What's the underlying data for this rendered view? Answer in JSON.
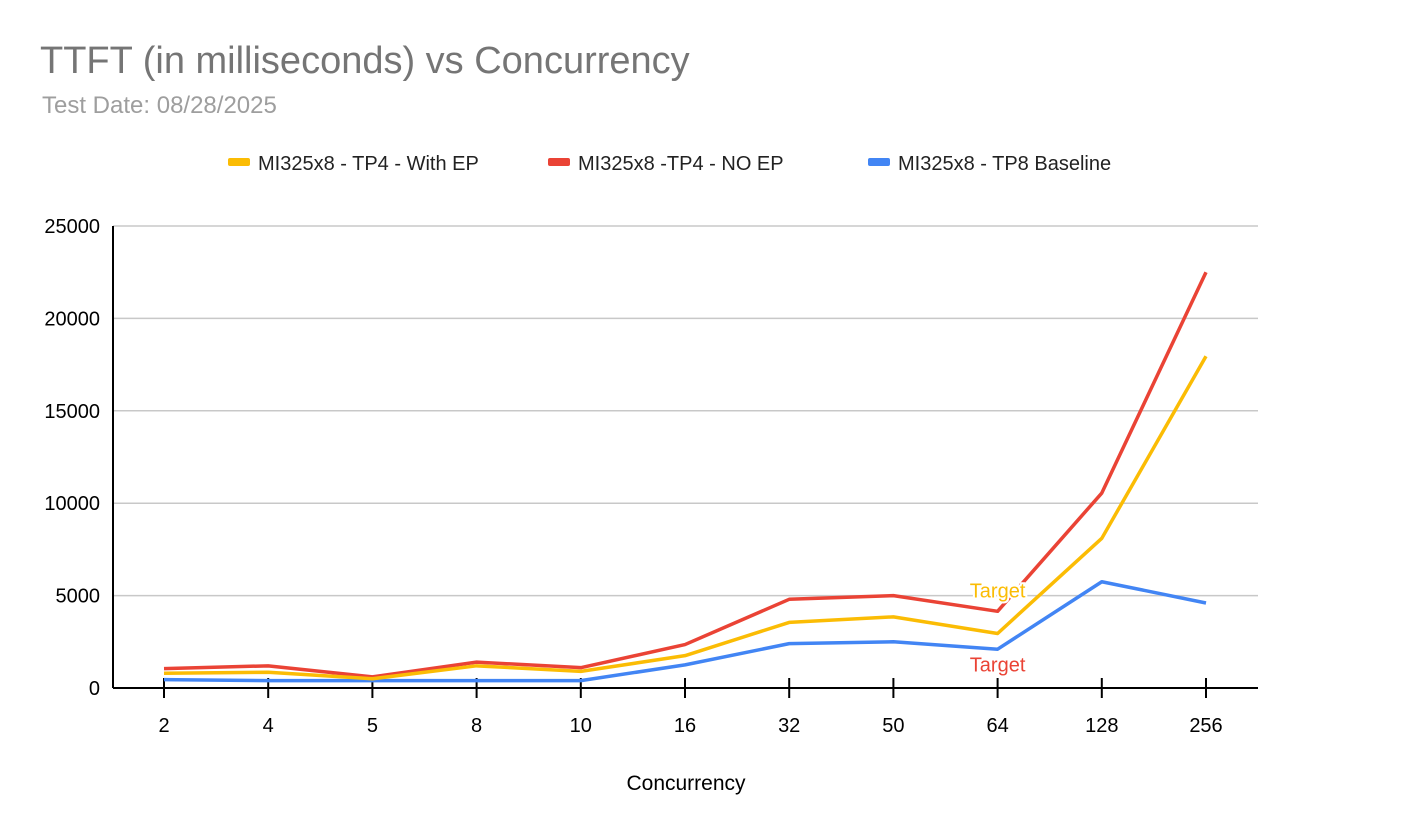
{
  "chart_data": {
    "type": "line",
    "title": "TTFT (in milliseconds) vs Concurrency",
    "subtitle": "Test Date: 08/28/2025",
    "xlabel": "Concurrency",
    "ylabel": "",
    "categories": [
      "2",
      "4",
      "5",
      "8",
      "10",
      "16",
      "32",
      "50",
      "64",
      "128",
      "256"
    ],
    "ylim": [
      0,
      25000
    ],
    "yticks": [
      "0",
      "5000",
      "10000",
      "15000",
      "20000",
      "25000"
    ],
    "grid": true,
    "legend": "top",
    "series": [
      {
        "name": "MI325x8 - TP4 - With EP",
        "color": "#fbbc04",
        "values": [
          800,
          850,
          500,
          1200,
          900,
          1750,
          3550,
          3850,
          2950,
          8100,
          17950
        ]
      },
      {
        "name": "MI325x8 -TP4 - NO EP",
        "color": "#ea4335",
        "values": [
          1050,
          1200,
          600,
          1400,
          1100,
          2350,
          4800,
          5000,
          4150,
          10550,
          22500
        ]
      },
      {
        "name": "MI325x8 - TP8 Baseline",
        "color": "#4285f4",
        "values": [
          450,
          400,
          400,
          400,
          400,
          1250,
          2400,
          2500,
          2100,
          5750,
          4600
        ]
      }
    ],
    "annotations": [
      {
        "text": "Target",
        "category": "64",
        "series": 0,
        "color": "#fbbc04"
      },
      {
        "text": "Target",
        "category": "64",
        "series": 1,
        "color": "#ea4335"
      }
    ]
  }
}
